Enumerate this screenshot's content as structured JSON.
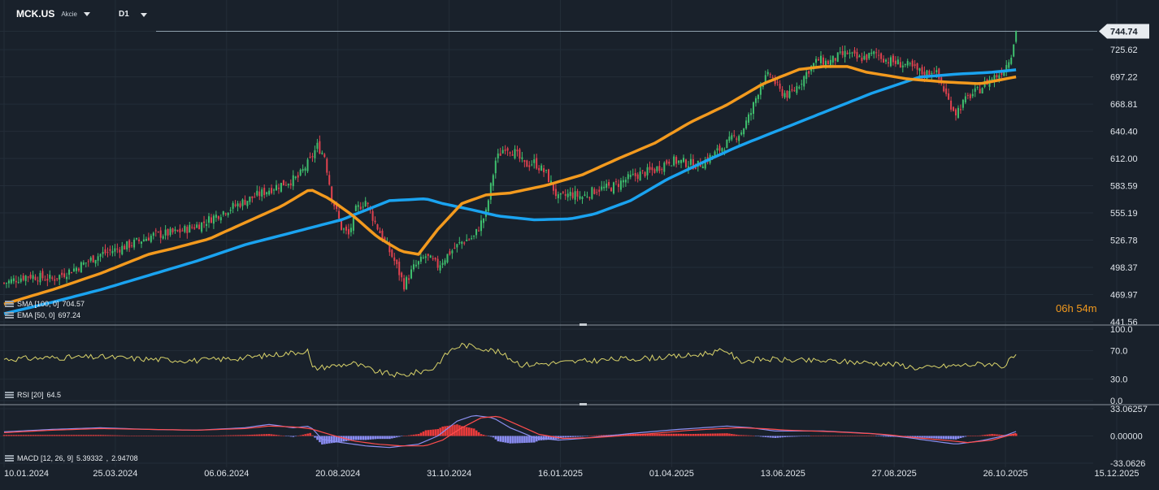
{
  "header": {
    "symbol": "MCK.US",
    "instrument_type": "Akcie",
    "timeframe": "D1"
  },
  "countdown": {
    "hours": "06",
    "hours_unit": "h",
    "minutes": "54",
    "minutes_unit": "m"
  },
  "colors": {
    "background": "#19212b",
    "grid": "#232d38",
    "up_candle": "#3fbf6e",
    "down_candle": "#e0424f",
    "sma": "#1aa3f0",
    "ema": "#f39a1e",
    "rsi": "#d9d36a",
    "macd_line": "#8c8ff0",
    "signal_line": "#ff4d4d",
    "hist_pos": "#ea3b3b",
    "hist_neg": "#8a8cf2",
    "last_price_tag": "#e8ecf0"
  },
  "chart_data": [
    {
      "type": "candlestick",
      "name": "price",
      "y_ticks": [
        "744.74",
        "725.62",
        "697.22",
        "668.81",
        "640.40",
        "612.00",
        "583.59",
        "555.19",
        "526.78",
        "498.37",
        "469.97",
        "441.56"
      ],
      "ylim": [
        441.56,
        752
      ],
      "last_price": "744.74",
      "x_ticks": [
        "10.01.2024",
        "25.03.2024",
        "06.06.2024",
        "20.08.2024",
        "31.10.2024",
        "16.01.2025",
        "01.04.2025",
        "13.06.2025",
        "27.08.2025",
        "26.10.2025",
        "15.12.2025"
      ],
      "close_path_points": [
        [
          0,
          482
        ],
        [
          10,
          490
        ],
        [
          20,
          486
        ],
        [
          30,
          498
        ],
        [
          40,
          512
        ],
        [
          50,
          520
        ],
        [
          62,
          532
        ],
        [
          72,
          535
        ],
        [
          82,
          544
        ],
        [
          92,
          558
        ],
        [
          102,
          570
        ],
        [
          112,
          582
        ],
        [
          122,
          592
        ],
        [
          127,
          610
        ],
        [
          130,
          625
        ],
        [
          133,
          615
        ],
        [
          136,
          572
        ],
        [
          140,
          540
        ],
        [
          143,
          532
        ],
        [
          146,
          558
        ],
        [
          150,
          568
        ],
        [
          154,
          545
        ],
        [
          158,
          525
        ],
        [
          162,
          505
        ],
        [
          166,
          480
        ],
        [
          170,
          498
        ],
        [
          175,
          510
        ],
        [
          180,
          500
        ],
        [
          185,
          514
        ],
        [
          190,
          525
        ],
        [
          195,
          530
        ],
        [
          200,
          555
        ],
        [
          204,
          610
        ],
        [
          208,
          625
        ],
        [
          212,
          618
        ],
        [
          216,
          605
        ],
        [
          220,
          608
        ],
        [
          225,
          596
        ],
        [
          230,
          570
        ],
        [
          235,
          575
        ],
        [
          240,
          572
        ],
        [
          246,
          580
        ],
        [
          252,
          582
        ],
        [
          258,
          590
        ],
        [
          264,
          596
        ],
        [
          270,
          600
        ],
        [
          276,
          610
        ],
        [
          282,
          608
        ],
        [
          288,
          605
        ],
        [
          294,
          615
        ],
        [
          300,
          628
        ],
        [
          306,
          640
        ],
        [
          310,
          660
        ],
        [
          314,
          690
        ],
        [
          318,
          700
        ],
        [
          322,
          682
        ],
        [
          326,
          678
        ],
        [
          330,
          690
        ],
        [
          334,
          705
        ],
        [
          338,
          715
        ],
        [
          342,
          712
        ],
        [
          346,
          718
        ],
        [
          350,
          722
        ],
        [
          354,
          716
        ],
        [
          358,
          718
        ],
        [
          362,
          722
        ],
        [
          366,
          715
        ],
        [
          370,
          712
        ],
        [
          374,
          710
        ],
        [
          378,
          705
        ],
        [
          382,
          700
        ],
        [
          386,
          705
        ],
        [
          389,
          690
        ],
        [
          392,
          672
        ],
        [
          395,
          660
        ],
        [
          398,
          670
        ],
        [
          401,
          678
        ],
        [
          404,
          682
        ],
        [
          407,
          690
        ],
        [
          410,
          696
        ],
        [
          413,
          700
        ],
        [
          416,
          710
        ],
        [
          418,
          722
        ],
        [
          420,
          744.74
        ]
      ],
      "x_domain": [
        0,
        452
      ],
      "series": [
        {
          "name": "SMA [100, 0]",
          "value": "704.57",
          "points": [
            [
              0,
              450
            ],
            [
              20,
              462
            ],
            [
              40,
              475
            ],
            [
              60,
              490
            ],
            [
              80,
              505
            ],
            [
              100,
              522
            ],
            [
              120,
              535
            ],
            [
              140,
              548
            ],
            [
              160,
              568
            ],
            [
              175,
              570
            ],
            [
              182,
              565
            ],
            [
              195,
              558
            ],
            [
              205,
              552
            ],
            [
              220,
              548
            ],
            [
              235,
              549
            ],
            [
              245,
              554
            ],
            [
              260,
              568
            ],
            [
              275,
              590
            ],
            [
              290,
              608
            ],
            [
              305,
              625
            ],
            [
              320,
              640
            ],
            [
              340,
              660
            ],
            [
              360,
              680
            ],
            [
              380,
              697
            ],
            [
              395,
              700
            ],
            [
              410,
              702
            ],
            [
              420,
              704.57
            ]
          ]
        },
        {
          "name": "EMA [50, 0]",
          "value": "697.24",
          "points": [
            [
              0,
              460
            ],
            [
              20,
              475
            ],
            [
              40,
              492
            ],
            [
              60,
              512
            ],
            [
              70,
              518
            ],
            [
              85,
              528
            ],
            [
              100,
              545
            ],
            [
              115,
              562
            ],
            [
              127,
              580
            ],
            [
              135,
              570
            ],
            [
              145,
              552
            ],
            [
              155,
              530
            ],
            [
              165,
              515
            ],
            [
              172,
              512
            ],
            [
              180,
              538
            ],
            [
              190,
              565
            ],
            [
              200,
              574
            ],
            [
              210,
              576
            ],
            [
              225,
              584
            ],
            [
              240,
              595
            ],
            [
              255,
              612
            ],
            [
              270,
              628
            ],
            [
              285,
              650
            ],
            [
              300,
              668
            ],
            [
              315,
              690
            ],
            [
              330,
              705
            ],
            [
              340,
              708
            ],
            [
              350,
              708
            ],
            [
              358,
              702
            ],
            [
              368,
              698
            ],
            [
              375,
              695
            ],
            [
              390,
              692
            ],
            [
              405,
              690
            ],
            [
              420,
              697.24
            ]
          ]
        }
      ]
    },
    {
      "type": "line",
      "name": "RSI",
      "series": [
        {
          "name": "RSI [20]",
          "value": "64.5"
        }
      ],
      "y_ticks": [
        "100.0",
        "70.0",
        "30.0",
        "0.0"
      ],
      "ylim": [
        0,
        100
      ],
      "x_domain": [
        0,
        452
      ],
      "points": [
        [
          0,
          58
        ],
        [
          20,
          60
        ],
        [
          40,
          61
        ],
        [
          60,
          58
        ],
        [
          80,
          56
        ],
        [
          100,
          60
        ],
        [
          112,
          64
        ],
        [
          122,
          68
        ],
        [
          126,
          70
        ],
        [
          128,
          45
        ],
        [
          135,
          48
        ],
        [
          145,
          52
        ],
        [
          155,
          40
        ],
        [
          165,
          35
        ],
        [
          172,
          40
        ],
        [
          178,
          45
        ],
        [
          185,
          70
        ],
        [
          190,
          78
        ],
        [
          198,
          74
        ],
        [
          205,
          68
        ],
        [
          215,
          50
        ],
        [
          225,
          52
        ],
        [
          240,
          55
        ],
        [
          255,
          58
        ],
        [
          270,
          60
        ],
        [
          285,
          63
        ],
        [
          295,
          68
        ],
        [
          300,
          70
        ],
        [
          305,
          55
        ],
        [
          315,
          58
        ],
        [
          330,
          56
        ],
        [
          345,
          55
        ],
        [
          360,
          53
        ],
        [
          372,
          50
        ],
        [
          380,
          45
        ],
        [
          390,
          48
        ],
        [
          400,
          50
        ],
        [
          410,
          52
        ],
        [
          415,
          48
        ],
        [
          420,
          64.5
        ]
      ]
    },
    {
      "type": "bar+line",
      "name": "MACD",
      "series": [
        {
          "name": "MACD [12, 26, 9]",
          "value": "5.39332"
        },
        {
          "name": "signal",
          "value": "2.94708"
        }
      ],
      "y_ticks": [
        "33.06257",
        "0.00000",
        "-33.0626"
      ],
      "ylim": [
        -33.0626,
        33.06257
      ],
      "x_domain": [
        0,
        452
      ],
      "macd": [
        [
          0,
          5
        ],
        [
          20,
          8
        ],
        [
          40,
          10
        ],
        [
          60,
          8
        ],
        [
          80,
          7
        ],
        [
          100,
          10
        ],
        [
          110,
          14
        ],
        [
          120,
          10
        ],
        [
          127,
          12
        ],
        [
          132,
          -4
        ],
        [
          140,
          -8
        ],
        [
          150,
          -12
        ],
        [
          160,
          -14
        ],
        [
          172,
          -10
        ],
        [
          180,
          0
        ],
        [
          188,
          18
        ],
        [
          195,
          25
        ],
        [
          203,
          22
        ],
        [
          210,
          10
        ],
        [
          220,
          -2
        ],
        [
          230,
          -5
        ],
        [
          240,
          -3
        ],
        [
          260,
          3
        ],
        [
          280,
          8
        ],
        [
          300,
          12
        ],
        [
          310,
          10
        ],
        [
          320,
          6
        ],
        [
          340,
          6
        ],
        [
          360,
          3
        ],
        [
          375,
          -2
        ],
        [
          385,
          -6
        ],
        [
          395,
          -10
        ],
        [
          405,
          -6
        ],
        [
          415,
          0
        ],
        [
          420,
          5.39332
        ]
      ],
      "signal": [
        [
          0,
          4
        ],
        [
          20,
          7
        ],
        [
          40,
          9
        ],
        [
          60,
          8
        ],
        [
          80,
          7
        ],
        [
          100,
          9
        ],
        [
          110,
          12
        ],
        [
          120,
          11
        ],
        [
          127,
          9
        ],
        [
          135,
          2
        ],
        [
          145,
          -6
        ],
        [
          155,
          -10
        ],
        [
          165,
          -12
        ],
        [
          175,
          -12
        ],
        [
          182,
          -5
        ],
        [
          190,
          10
        ],
        [
          198,
          22
        ],
        [
          205,
          24
        ],
        [
          212,
          15
        ],
        [
          222,
          2
        ],
        [
          232,
          -3
        ],
        [
          245,
          -2
        ],
        [
          265,
          2
        ],
        [
          285,
          7
        ],
        [
          305,
          10
        ],
        [
          315,
          9
        ],
        [
          325,
          7
        ],
        [
          345,
          5
        ],
        [
          365,
          2
        ],
        [
          378,
          -2
        ],
        [
          390,
          -5
        ],
        [
          400,
          -8
        ],
        [
          410,
          -5
        ],
        [
          420,
          2.94708
        ]
      ]
    }
  ]
}
